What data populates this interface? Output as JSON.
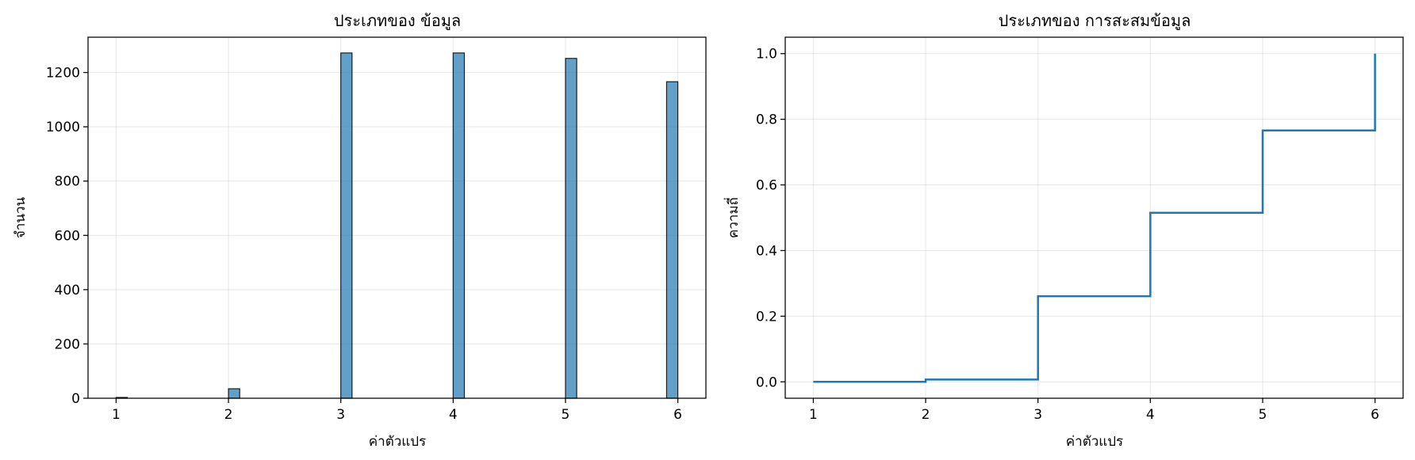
{
  "chart_data": [
    {
      "type": "bar",
      "title": "ประเภทของ ข้อมูล",
      "xlabel": "ค่าตัวแปร",
      "ylabel": "จำนวน",
      "xlim": [
        0.75,
        6.25
      ],
      "ylim": [
        0,
        1330
      ],
      "xticks": [
        1,
        2,
        3,
        4,
        5,
        6
      ],
      "yticks": [
        0,
        200,
        400,
        600,
        800,
        1000,
        1200
      ],
      "grid": true,
      "bar_width": 0.1,
      "bars": [
        {
          "x": 1.05,
          "value": 3
        },
        {
          "x": 2.05,
          "value": 35
        },
        {
          "x": 3.05,
          "value": 1272
        },
        {
          "x": 4.05,
          "value": 1272
        },
        {
          "x": 5.05,
          "value": 1252
        },
        {
          "x": 5.95,
          "value": 1166
        }
      ]
    },
    {
      "type": "line",
      "title": "ประเภทของ การสะสมข้อมูล",
      "xlabel": "ค่าตัวแปร",
      "ylabel": "ความถี่",
      "xlim": [
        0.75,
        6.25
      ],
      "ylim": [
        -0.05,
        1.05
      ],
      "xticks": [
        1,
        2,
        3,
        4,
        5,
        6
      ],
      "yticks": [
        0.0,
        0.2,
        0.4,
        0.6,
        0.8,
        1.0
      ],
      "grid": true,
      "step": true,
      "points": [
        {
          "x": 1,
          "y": 0.0
        },
        {
          "x": 2,
          "y": 0.007
        },
        {
          "x": 3,
          "y": 0.261
        },
        {
          "x": 4,
          "y": 0.515
        },
        {
          "x": 5,
          "y": 0.766
        },
        {
          "x": 6,
          "y": 1.0
        }
      ]
    }
  ]
}
